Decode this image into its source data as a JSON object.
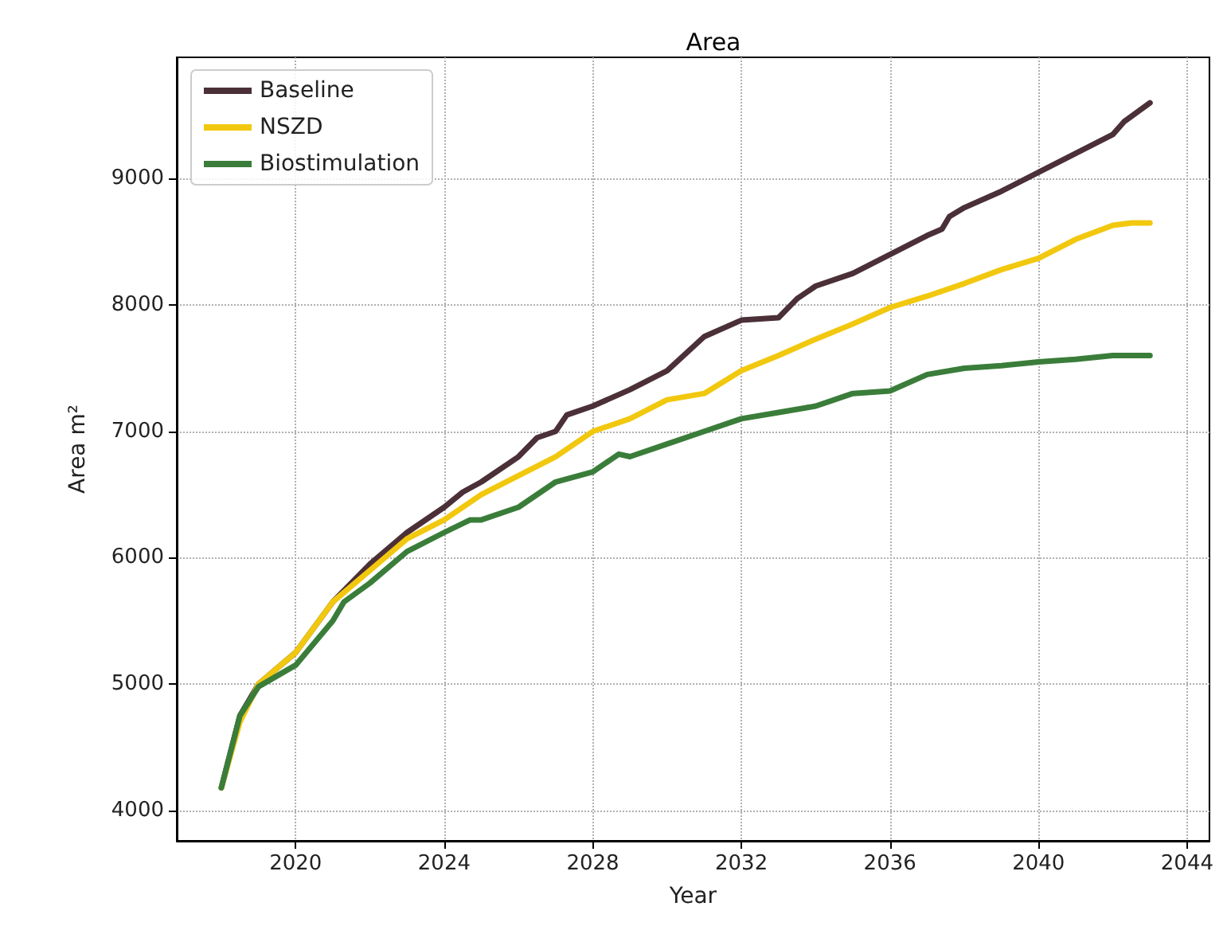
{
  "chart_data": {
    "type": "line",
    "title": "Area",
    "xlabel": "Year",
    "ylabel": "Area m²",
    "xlim": [
      2016.8,
      2044.6
    ],
    "ylim": [
      3760,
      9960
    ],
    "xticks": [
      2020,
      2024,
      2028,
      2032,
      2036,
      2040,
      2044
    ],
    "yticks": [
      4000,
      5000,
      6000,
      7000,
      8000,
      9000
    ],
    "grid": true,
    "legend": "top left",
    "line_style": "solid",
    "marker": "none",
    "series": [
      {
        "name": "Baseline",
        "color": "#4b3038",
        "x": [
          2018,
          2018.5,
          2019,
          2020,
          2021,
          2022,
          2023,
          2024,
          2024.5,
          2025,
          2026,
          2026.5,
          2027,
          2027.3,
          2028,
          2029,
          2030,
          2031,
          2032,
          2033,
          2033.5,
          2034,
          2035,
          2036,
          2037,
          2037.4,
          2037.6,
          2038,
          2039,
          2040,
          2041,
          2042,
          2042.3,
          2043
        ],
        "values": [
          4180,
          4750,
          5000,
          5250,
          5650,
          5950,
          6200,
          6400,
          6520,
          6600,
          6800,
          6950,
          7000,
          7130,
          7200,
          7330,
          7480,
          7750,
          7880,
          7900,
          8050,
          8150,
          8250,
          8400,
          8550,
          8600,
          8700,
          8770,
          8900,
          9050,
          9200,
          9350,
          9450,
          9600
        ]
      },
      {
        "name": "NSZD",
        "color": "#f2c80f",
        "x": [
          2018,
          2018.5,
          2019,
          2020,
          2021,
          2022,
          2023,
          2024,
          2025,
          2026,
          2027,
          2028,
          2029,
          2030,
          2031,
          2032,
          2033,
          2034,
          2035,
          2036,
          2037,
          2038,
          2039,
          2040,
          2041,
          2042,
          2042.5,
          2043
        ],
        "values": [
          4180,
          4700,
          5000,
          5250,
          5650,
          5900,
          6150,
          6300,
          6500,
          6650,
          6800,
          7000,
          7100,
          7250,
          7300,
          7480,
          7600,
          7730,
          7850,
          7980,
          8070,
          8170,
          8280,
          8370,
          8520,
          8630,
          8650,
          8650
        ]
      },
      {
        "name": "Biostimulation",
        "color": "#3a7d3a",
        "x": [
          2018,
          2018.5,
          2019,
          2020,
          2021,
          2021.3,
          2022,
          2023,
          2024,
          2024.7,
          2025,
          2026,
          2027,
          2028,
          2028.7,
          2029,
          2030,
          2031,
          2032,
          2033,
          2034,
          2035,
          2036,
          2037,
          2038,
          2039,
          2040,
          2041,
          2042,
          2043
        ],
        "values": [
          4180,
          4750,
          4980,
          5150,
          5500,
          5650,
          5800,
          6050,
          6200,
          6300,
          6300,
          6400,
          6600,
          6680,
          6820,
          6800,
          6900,
          7000,
          7100,
          7150,
          7200,
          7300,
          7320,
          7450,
          7500,
          7520,
          7550,
          7570,
          7600,
          7600
        ]
      }
    ]
  }
}
